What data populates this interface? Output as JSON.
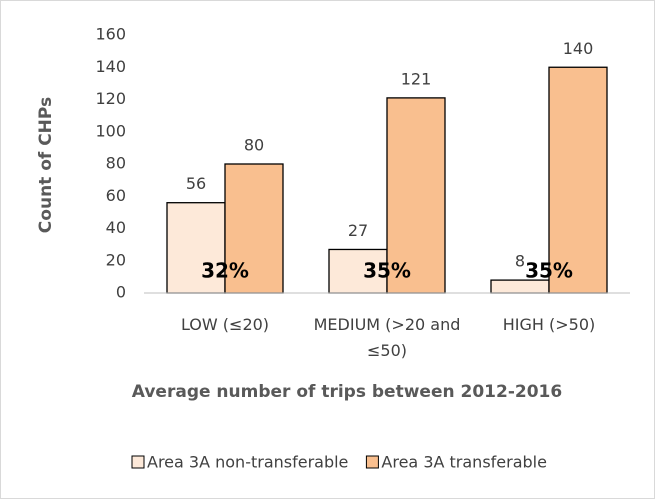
{
  "chart_data": {
    "type": "bar",
    "categories": [
      "LOW (≤20)",
      "MEDIUM (>20 and ≤50)",
      "HIGH (>50)"
    ],
    "series": [
      {
        "name": "Area 3A non-transferable",
        "color": "#fde9d9",
        "values": [
          56,
          27,
          8
        ]
      },
      {
        "name": "Area 3A transferable",
        "color": "#f9bf8f",
        "values": [
          80,
          121,
          140
        ]
      }
    ],
    "annotations": [
      "32%",
      "35%",
      "35%"
    ],
    "ylabel": "Count of CHPs",
    "xlabel": "Average number of trips between 2012-2016",
    "ylim": [
      0,
      160
    ],
    "yticks": [
      0,
      20,
      40,
      60,
      80,
      100,
      120,
      140,
      160
    ],
    "grid": false,
    "legend": "bottom"
  }
}
